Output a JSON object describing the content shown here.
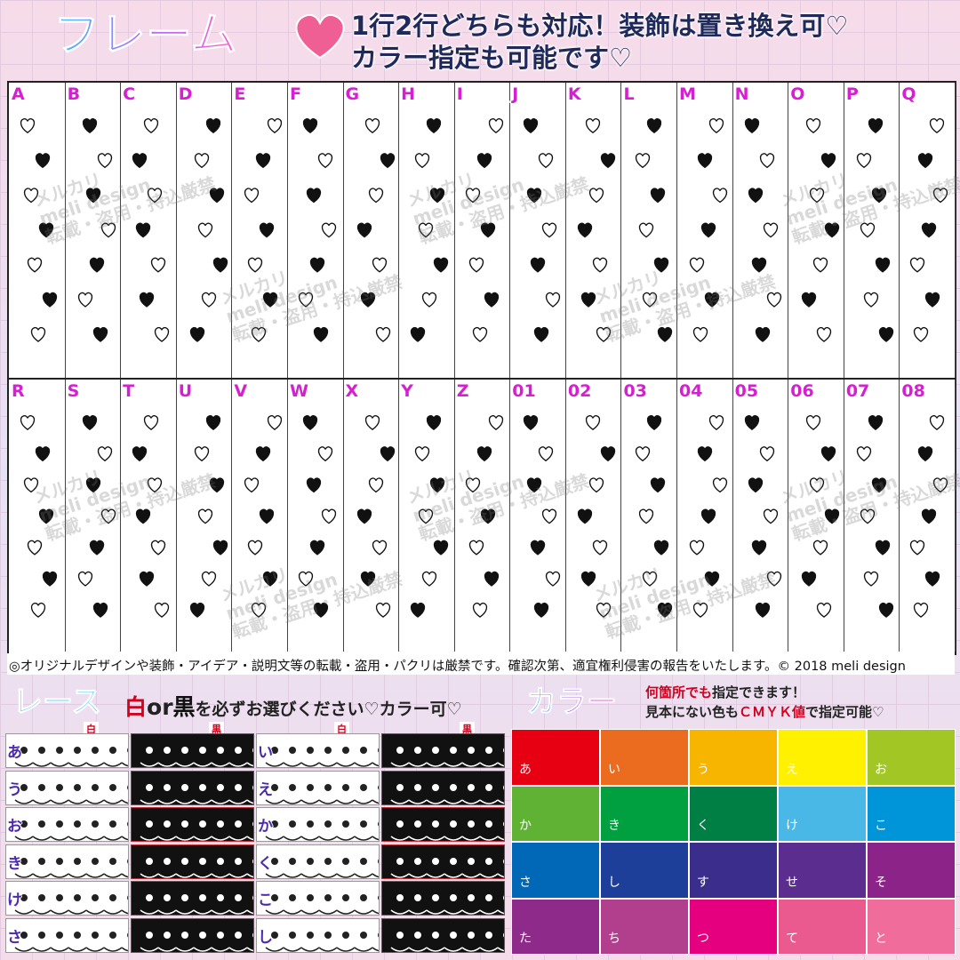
{
  "header": {
    "title": "フレーム",
    "lines": [
      "1行2行どちらも対応！装飾は置き換え可♡",
      "カラー指定も可能です♡"
    ]
  },
  "frames": {
    "rows": [
      [
        "A",
        "B",
        "C",
        "D",
        "E",
        "F",
        "G",
        "H",
        "I",
        "J",
        "K",
        "L",
        "M",
        "N",
        "O",
        "P",
        "Q"
      ],
      [
        "R",
        "S",
        "T",
        "U",
        "V",
        "W",
        "X",
        "Y",
        "Z",
        "01",
        "02",
        "03",
        "04",
        "05",
        "06",
        "07",
        "08"
      ]
    ]
  },
  "watermark": [
    "メルカリ",
    "meli design",
    "転載・盗用・持込厳禁"
  ],
  "copyright": "◎オリジナルデザインや装飾・アイデア・説明文等の転載・盗用・パクリは厳禁です。確認次第、適宜権利侵害の報告をいたします。© 2018 meli design",
  "lace": {
    "title": "レース",
    "note": [
      "白",
      "or",
      "黒",
      "を必ずお選びください♡カラー可♡"
    ],
    "columns": [
      "白",
      "黒",
      "白",
      "黒"
    ],
    "rows": [
      [
        "あ",
        "い"
      ],
      [
        "う",
        "え"
      ],
      [
        "お",
        "か"
      ],
      [
        "き",
        "く"
      ],
      [
        "け",
        "こ"
      ],
      [
        "さ",
        "し"
      ]
    ]
  },
  "color": {
    "title": "カラー",
    "note": [
      [
        "何箇所でも",
        "指定できます！"
      ],
      [
        "見本にない色も",
        "ＣＭＹＫ値",
        "で指定可能♡"
      ]
    ],
    "swatches": [
      {
        "label": "あ",
        "color": "#e60012"
      },
      {
        "label": "い",
        "color": "#ec6c1f"
      },
      {
        "label": "う",
        "color": "#f8b500"
      },
      {
        "label": "え",
        "color": "#fff100"
      },
      {
        "label": "お",
        "color": "#a2c725"
      },
      {
        "label": "か",
        "color": "#5fb233"
      },
      {
        "label": "き",
        "color": "#00a040"
      },
      {
        "label": "く",
        "color": "#007f45"
      },
      {
        "label": "け",
        "color": "#49b8e6"
      },
      {
        "label": "こ",
        "color": "#0095d9"
      },
      {
        "label": "さ",
        "color": "#0068b7"
      },
      {
        "label": "し",
        "color": "#1d3f9a"
      },
      {
        "label": "す",
        "color": "#3b2d8c"
      },
      {
        "label": "せ",
        "color": "#5a2d8e"
      },
      {
        "label": "そ",
        "color": "#8b2388"
      },
      {
        "label": "た",
        "color": "#8e2a8a"
      },
      {
        "label": "ち",
        "color": "#b13f8e"
      },
      {
        "label": "つ",
        "color": "#e4007f"
      },
      {
        "label": "て",
        "color": "#ea5a8f"
      },
      {
        "label": "と",
        "color": "#f06c9b"
      }
    ]
  }
}
